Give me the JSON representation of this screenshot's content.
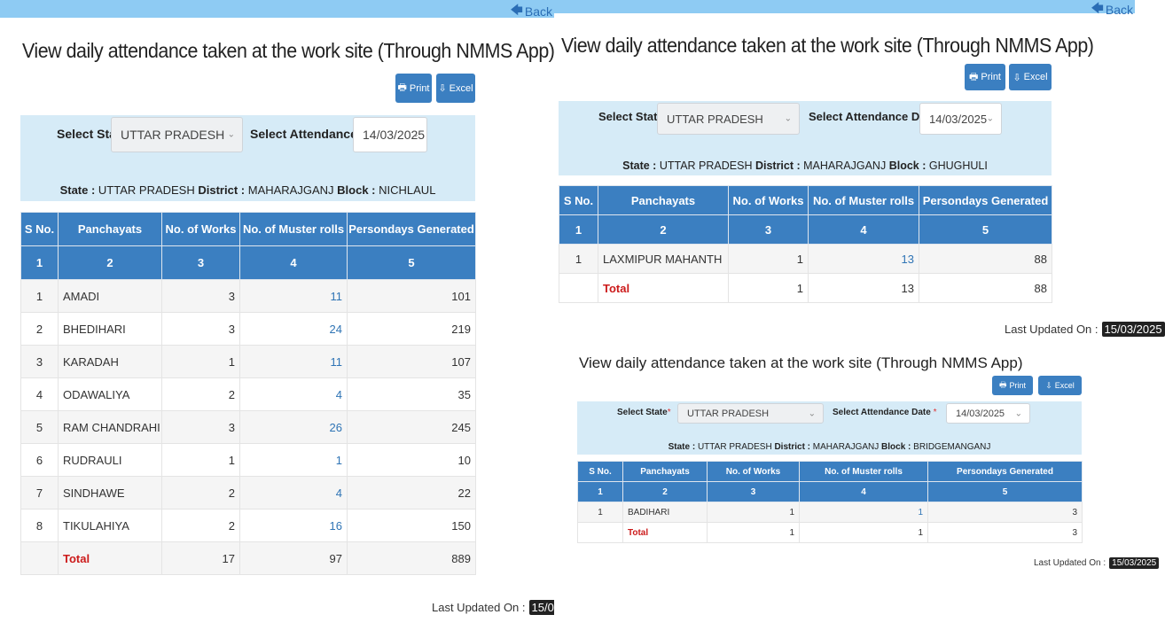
{
  "common": {
    "back_label": "Back",
    "title": "View daily attendance taken at the work site (Through NMMS App)",
    "print_label": "Print",
    "excel_label": "Excel",
    "state_label": "Select State",
    "required_mark": "*",
    "date_label": "Select Attendance Date",
    "state_value": "UTTAR PRADESH",
    "date_value": "14/03/2025",
    "info_state_label": "State :",
    "info_district_label": "District :",
    "info_block_label": "Block :",
    "info_state": "UTTAR PRADESH",
    "info_district": "MAHARAJGANJ",
    "last_updated_label": "Last Updated On :",
    "last_updated_value": "15/03/2025",
    "columns": [
      "S No.",
      "Panchayats",
      "No. of Works",
      "No. of Muster rolls",
      "Persondays Generated"
    ],
    "column_numbers": [
      "1",
      "2",
      "3",
      "4",
      "5"
    ],
    "total_label": "Total"
  },
  "panels": {
    "left": {
      "block": "NICHLAUL",
      "rows": [
        {
          "sno": "1",
          "panchayat": "AMADI",
          "works": "3",
          "muster": "11",
          "persondays": "101"
        },
        {
          "sno": "2",
          "panchayat": "BHEDIHARI",
          "works": "3",
          "muster": "24",
          "persondays": "219"
        },
        {
          "sno": "3",
          "panchayat": "KARADAH",
          "works": "1",
          "muster": "11",
          "persondays": "107"
        },
        {
          "sno": "4",
          "panchayat": "ODAWALIYA",
          "works": "2",
          "muster": "4",
          "persondays": "35"
        },
        {
          "sno": "5",
          "panchayat": "RAM CHANDRAHI",
          "works": "3",
          "muster": "26",
          "persondays": "245"
        },
        {
          "sno": "6",
          "panchayat": "RUDRAULI",
          "works": "1",
          "muster": "1",
          "persondays": "10"
        },
        {
          "sno": "7",
          "panchayat": "SINDHAWE",
          "works": "2",
          "muster": "4",
          "persondays": "22"
        },
        {
          "sno": "8",
          "panchayat": "TIKULAHIYA",
          "works": "2",
          "muster": "16",
          "persondays": "150"
        }
      ],
      "total": {
        "works": "17",
        "muster": "97",
        "persondays": "889"
      }
    },
    "top_right": {
      "block": "GHUGHULI",
      "rows": [
        {
          "sno": "1",
          "panchayat": "LAXMIPUR MAHANTH",
          "works": "1",
          "muster": "13",
          "persondays": "88"
        }
      ],
      "total": {
        "works": "1",
        "muster": "13",
        "persondays": "88"
      }
    },
    "bottom_right": {
      "block": "BRIDGEMANGANJ",
      "rows": [
        {
          "sno": "1",
          "panchayat": "BADIHARI",
          "works": "1",
          "muster": "1",
          "persondays": "3"
        }
      ],
      "total": {
        "works": "1",
        "muster": "1",
        "persondays": "3"
      }
    }
  },
  "colors": {
    "header_blue": "#3b7fc1",
    "filter_bg": "#d6ebf7",
    "topbar": "#8ecbf3",
    "total_red": "#cc1b1b",
    "link_blue": "#2f74b5"
  }
}
